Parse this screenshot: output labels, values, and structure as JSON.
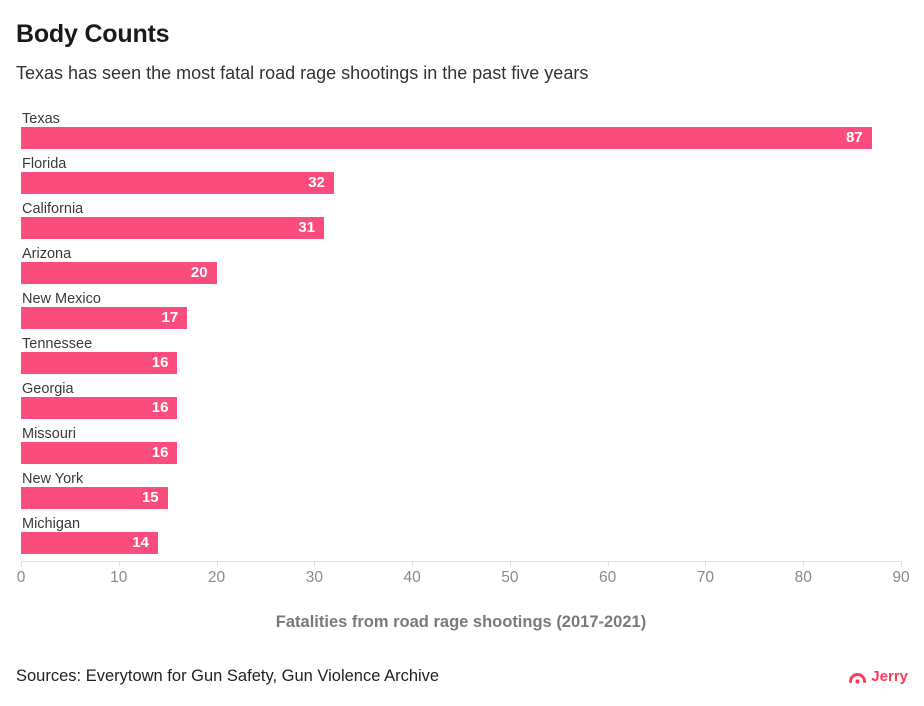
{
  "chart_data": {
    "type": "bar",
    "orientation": "horizontal",
    "title": "Body Counts",
    "subtitle": "Texas has seen the most fatal road rage shootings in the past five years",
    "categories": [
      "Texas",
      "Florida",
      "California",
      "Arizona",
      "New Mexico",
      "Tennessee",
      "Georgia",
      "Missouri",
      "New York",
      "Michigan"
    ],
    "values": [
      87,
      32,
      31,
      20,
      17,
      16,
      16,
      16,
      15,
      14
    ],
    "xlabel": "Fatalities from road rage shootings (2017-2021)",
    "ylabel": "",
    "xlim": [
      0,
      90
    ],
    "xticks": [
      0,
      10,
      20,
      30,
      40,
      50,
      60,
      70,
      80,
      90
    ],
    "grid": false,
    "legend": "none",
    "bar_color": "#FA4D7E",
    "value_label_color": "#FFFFFF"
  },
  "footer": {
    "sources": "Sources: Everytown for Gun Safety, Gun Violence Archive",
    "brand_label": "Jerry",
    "brand_color": "#FB3A5D"
  }
}
